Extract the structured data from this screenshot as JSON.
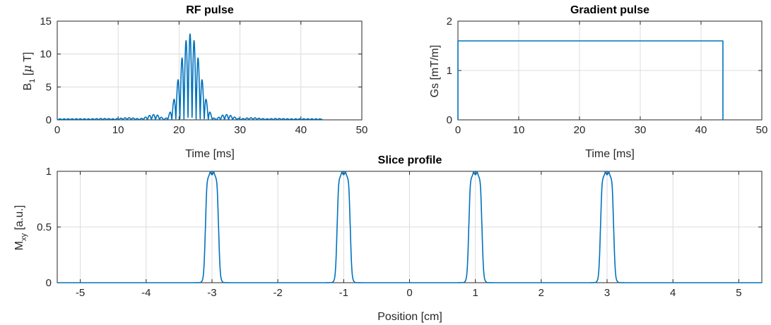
{
  "colors": {
    "series": "#0072BD",
    "axis": "#262626",
    "grid": "#DCDCDC"
  },
  "chart_data": [
    {
      "id": "rf",
      "type": "line",
      "title": "RF pulse",
      "xlabel": "Time [ms]",
      "ylabel_main": "B",
      "ylabel_sub": "1",
      "ylabel_rest": " [",
      "ylabel_greek": "μ",
      "ylabel_end": " T]",
      "xlim": [
        0,
        50
      ],
      "ylim": [
        0,
        15
      ],
      "xticks": [
        0,
        10,
        20,
        30,
        40,
        50
      ],
      "yticks": [
        0,
        5,
        10,
        15
      ],
      "grid": true,
      "series": [
        {
          "name": "B1",
          "model": "multiband-sinc",
          "duration_ms": 43.6,
          "center_ms": 21.8,
          "peak": 12.9
        }
      ]
    },
    {
      "id": "grad",
      "type": "line",
      "title": "Gradient pulse",
      "xlabel": "Time [ms]",
      "ylabel": "Gs [mT/m]",
      "xlim": [
        0,
        50
      ],
      "ylim": [
        0,
        2
      ],
      "xticks": [
        0,
        10,
        20,
        30,
        40,
        50
      ],
      "yticks": [
        0,
        1,
        2
      ],
      "grid": true,
      "series": [
        {
          "name": "Gs",
          "x": [
            0,
            0,
            43.6,
            43.6
          ],
          "y": [
            0,
            1.6,
            1.6,
            0
          ]
        }
      ]
    },
    {
      "id": "slice",
      "type": "line",
      "title": "Slice profile",
      "xlabel": "Position [cm]",
      "ylabel_main": "M",
      "ylabel_sub": "xy",
      "ylabel_rest": " [a.u.]",
      "xlim": [
        -5.35,
        5.35
      ],
      "ylim": [
        0,
        1
      ],
      "xticks": [
        -5,
        -4,
        -3,
        -2,
        -1,
        0,
        1,
        2,
        3,
        4,
        5
      ],
      "yticks": [
        0,
        0.5,
        1
      ],
      "grid": true,
      "series": [
        {
          "name": "Mxy",
          "band_centers": [
            -3,
            -1,
            1,
            3
          ],
          "band_width_cm": 0.2,
          "peak": 1.0
        }
      ]
    }
  ]
}
